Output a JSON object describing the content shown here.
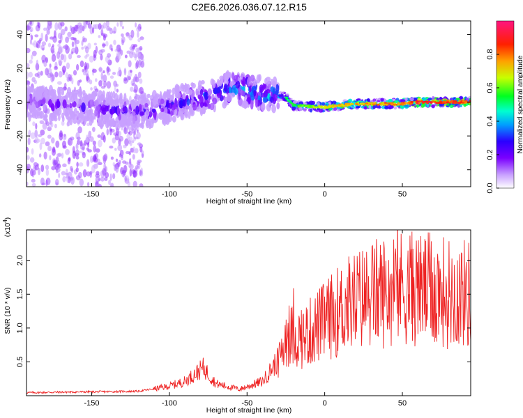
{
  "title": "C2E6.2026.036.07.12.R15",
  "chart_data": [
    {
      "type": "heatmap",
      "name": "spectrogram",
      "xlabel": "Height of straight line (km)",
      "ylabel": "Frequency (Hz)",
      "xlim": [
        -192,
        94
      ],
      "ylim": [
        -50,
        48
      ],
      "xticks": [
        -150,
        -100,
        -50,
        0,
        50
      ],
      "yticks": [
        -40,
        -20,
        0,
        20,
        40
      ],
      "colorbar": {
        "label": "Normalized spectral amplitude",
        "range": [
          0,
          1
        ],
        "ticks": [
          "0.0",
          "0.2",
          "0.4",
          "0.6",
          "0.8"
        ],
        "colors": [
          "#ffffff",
          "#8a2be2",
          "#2020ff",
          "#00e0ff",
          "#00ff40",
          "#c8ff00",
          "#ff8000",
          "#ff0000",
          "#ff1493"
        ]
      },
      "ridge": [
        {
          "x": -192,
          "f": 0,
          "amp": 0.25
        },
        {
          "x": -120,
          "f": -6,
          "amp": 0.3
        },
        {
          "x": -100,
          "f": -2,
          "amp": 0.35
        },
        {
          "x": -80,
          "f": 3,
          "amp": 0.4
        },
        {
          "x": -60,
          "f": 8,
          "amp": 0.45
        },
        {
          "x": -45,
          "f": 6,
          "amp": 0.5
        },
        {
          "x": -25,
          "f": 3,
          "amp": 0.55
        },
        {
          "x": -20,
          "f": -2,
          "amp": 0.6
        },
        {
          "x": 0,
          "f": -3,
          "amp": 0.75
        },
        {
          "x": 20,
          "f": -1,
          "amp": 0.8
        },
        {
          "x": 50,
          "f": -1,
          "amp": 0.85
        },
        {
          "x": 60,
          "f": 0,
          "amp": 0.95
        },
        {
          "x": 94,
          "f": 0,
          "amp": 0.9
        }
      ]
    },
    {
      "type": "line",
      "name": "snr",
      "xlabel": "Height of straight line (km)",
      "ylabel": "SNR (10 * v/v)",
      "yscale_label": "(x10",
      "yscale_exp": "4",
      "xlim": [
        -192,
        94
      ],
      "ylim": [
        0,
        2.45
      ],
      "xticks": [
        -150,
        -100,
        -50,
        0,
        50
      ],
      "yticks": [
        "0.5",
        "1.0",
        "1.5",
        "2.0"
      ],
      "color": "#ee2222",
      "series": [
        {
          "x": -192,
          "y": 0.03
        },
        {
          "x": -160,
          "y": 0.04
        },
        {
          "x": -120,
          "y": 0.05
        },
        {
          "x": -100,
          "y": 0.12
        },
        {
          "x": -90,
          "y": 0.18
        },
        {
          "x": -78,
          "y": 0.35
        },
        {
          "x": -70,
          "y": 0.15
        },
        {
          "x": -55,
          "y": 0.08
        },
        {
          "x": -40,
          "y": 0.18
        },
        {
          "x": -30,
          "y": 0.45
        },
        {
          "x": -25,
          "y": 0.9
        },
        {
          "x": -15,
          "y": 0.85
        },
        {
          "x": 0,
          "y": 1.1
        },
        {
          "x": 15,
          "y": 1.35
        },
        {
          "x": 30,
          "y": 1.5
        },
        {
          "x": 50,
          "y": 1.6
        },
        {
          "x": 70,
          "y": 1.55
        },
        {
          "x": 94,
          "y": 1.5
        }
      ]
    }
  ]
}
